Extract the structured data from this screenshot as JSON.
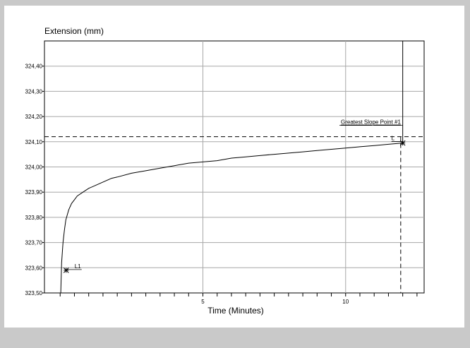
{
  "chart_data": {
    "type": "line",
    "ylabel": "Extension (mm)",
    "xlabel": "Time (Minutes)",
    "xlim": [
      -0.55,
      12.75
    ],
    "ylim": [
      323.5,
      324.5
    ],
    "x_tick_labels": [
      {
        "value": 5,
        "label": "5"
      },
      {
        "value": 10,
        "label": "10"
      }
    ],
    "x_minor_ticks": [
      0,
      0.5,
      1,
      1.5,
      2,
      2.5,
      3,
      3.5,
      4,
      4.5,
      5,
      5.5,
      6,
      6.5,
      7,
      7.5,
      8,
      8.5,
      9,
      9.5,
      10,
      10.5,
      11,
      11.5,
      12,
      12.5
    ],
    "y_tick_labels": [
      {
        "value": 323.5,
        "label": "323,50"
      },
      {
        "value": 323.6,
        "label": "323,60"
      },
      {
        "value": 323.7,
        "label": "323,70"
      },
      {
        "value": 323.8,
        "label": "323,80"
      },
      {
        "value": 323.9,
        "label": "323,90"
      },
      {
        "value": 324.0,
        "label": "324,00"
      },
      {
        "value": 324.1,
        "label": "324,10"
      },
      {
        "value": 324.2,
        "label": "324,20"
      },
      {
        "value": 324.3,
        "label": "324,30"
      },
      {
        "value": 324.4,
        "label": "324,40"
      }
    ],
    "grid": true,
    "series": [
      {
        "x": [
          0.02,
          0.05,
          0.1,
          0.15,
          0.2,
          0.3,
          0.4,
          0.5,
          0.6,
          0.8,
          1.0,
          1.2,
          1.5,
          1.8,
          2.0,
          2.5,
          3.0,
          3.5,
          4.0,
          4.5,
          5.0,
          5.5,
          6.0,
          6.5,
          7.0,
          7.5,
          8.0,
          8.5,
          9.0,
          9.5,
          10.0,
          10.5,
          11.0,
          11.5,
          12.0
        ],
        "y": [
          323.5,
          323.62,
          323.7,
          323.75,
          323.79,
          323.83,
          323.855,
          323.87,
          323.885,
          323.9,
          323.915,
          323.925,
          323.94,
          323.955,
          323.96,
          323.975,
          323.985,
          323.995,
          324.005,
          324.015,
          324.02,
          324.025,
          324.035,
          324.04,
          324.045,
          324.05,
          324.055,
          324.06,
          324.065,
          324.07,
          324.075,
          324.08,
          324.085,
          324.09,
          324.095
        ]
      }
    ],
    "markers": [
      {
        "x": 0.21,
        "y": 323.59,
        "label": "L1"
      },
      {
        "x": 12.0,
        "y": 324.095,
        "label": "L"
      }
    ],
    "reference": {
      "y": 324.12,
      "x": 11.93,
      "label": "Greatest Slope Point #1"
    },
    "vertical_line": {
      "x": 12.0,
      "y_from": 324.1,
      "y_to": 324.5
    }
  }
}
